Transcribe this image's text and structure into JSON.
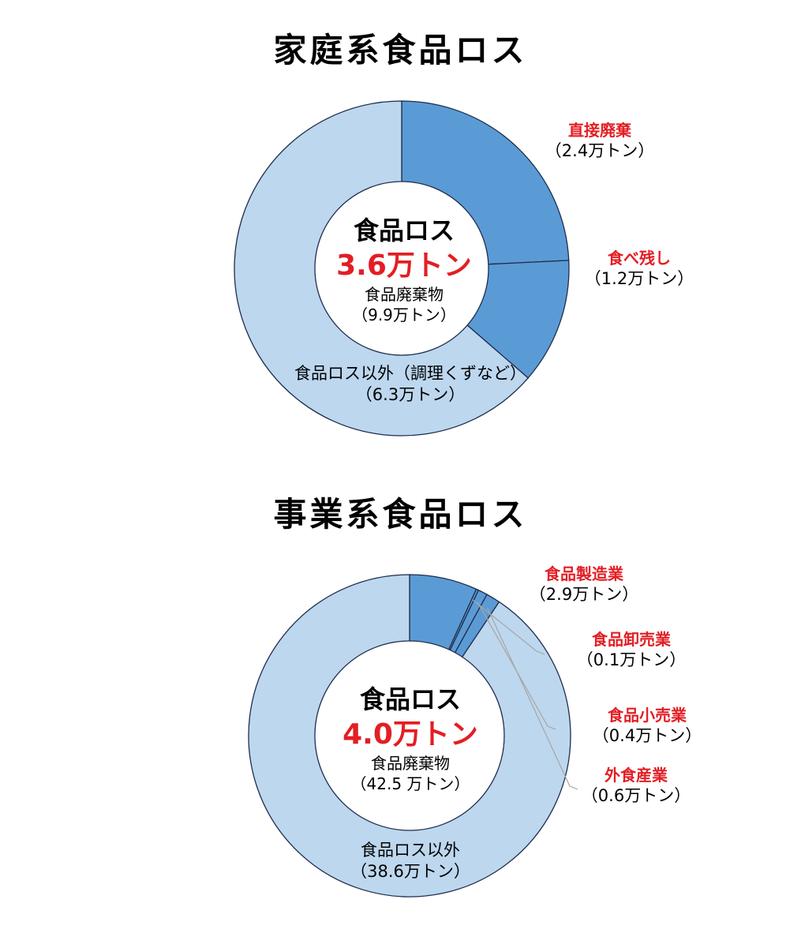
{
  "chart_data": [
    {
      "type": "donut",
      "title": "家庭系食品ロス",
      "center": {
        "label": "食品ロス",
        "total": "3.6万トン",
        "sub_label": "食品廃棄物",
        "sub_total": "（9.9万トン）"
      },
      "slices": [
        {
          "name": "直接廃棄",
          "value": 2.4,
          "value_label": "（2.4万トン）",
          "color": "#5b9bd5"
        },
        {
          "name": "食べ残し",
          "value": 1.2,
          "value_label": "（1.2万トン）",
          "color": "#5b9bd5"
        },
        {
          "name": "食品ロス以外（調理くずなど）",
          "value": 6.3,
          "value_label": "（6.3万トン）",
          "color": "#bdd7ee"
        }
      ]
    },
    {
      "type": "donut",
      "title": "事業系食品ロス",
      "center": {
        "label": "食品ロス",
        "total": "4.0万トン",
        "sub_label": "食品廃棄物",
        "sub_total": "（42.5 万トン）"
      },
      "slices": [
        {
          "name": "食品製造業",
          "value": 2.9,
          "value_label": "（2.9万トン）",
          "color": "#5b9bd5"
        },
        {
          "name": "食品卸売業",
          "value": 0.1,
          "value_label": "（0.1万トン）",
          "color": "#5b9bd5"
        },
        {
          "name": "食品小売業",
          "value": 0.4,
          "value_label": "（0.4万トン）",
          "color": "#5b9bd5"
        },
        {
          "name": "外食産業",
          "value": 0.6,
          "value_label": "（0.6万トン）",
          "color": "#5b9bd5"
        },
        {
          "name": "食品ロス以外",
          "value": 38.6,
          "value_label": "（38.6万トン）",
          "color": "#bdd7ee"
        }
      ]
    }
  ],
  "colors": {
    "accent_red": "#e31e24",
    "dark_blue": "#5b9bd5",
    "light_blue": "#bdd7ee"
  }
}
